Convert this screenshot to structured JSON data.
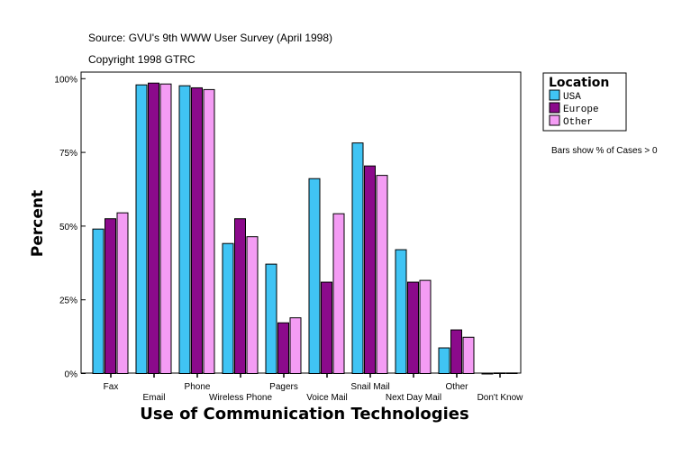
{
  "chart_data": {
    "type": "bar",
    "subtitle_lines": [
      "Source: GVU's 9th WWW User Survey (April 1998)",
      "Copyright 1998 GTRC"
    ],
    "xlabel": "Use of Communication Technologies",
    "ylabel": "Percent",
    "ylim": [
      0,
      100
    ],
    "yticks": [
      "0%",
      "25%",
      "50%",
      "75%",
      "100%"
    ],
    "grid": false,
    "legend": {
      "title": "Location",
      "placement": "right"
    },
    "note": "Bars show % of Cases > 0",
    "categories": [
      "Fax",
      "Email",
      "Phone",
      "Wireless Phone",
      "Pagers",
      "Voice Mail",
      "Snail Mail",
      "Next Day Mail",
      "Other",
      "Don't Know"
    ],
    "series": [
      {
        "name": "USA",
        "color": "#40c4f4",
        "values": [
          49.0,
          97.9,
          97.6,
          44.1,
          37.1,
          66.1,
          78.2,
          42.0,
          8.7,
          0.0
        ]
      },
      {
        "name": "Europe",
        "color": "#8b0a8b",
        "values": [
          52.5,
          98.5,
          96.9,
          52.5,
          17.2,
          31.0,
          70.4,
          31.0,
          14.8,
          0.2
        ]
      },
      {
        "name": "Other",
        "color": "#f49cf4",
        "values": [
          54.5,
          98.2,
          96.3,
          46.4,
          18.9,
          54.2,
          67.2,
          31.6,
          12.3,
          0.2
        ]
      }
    ]
  }
}
